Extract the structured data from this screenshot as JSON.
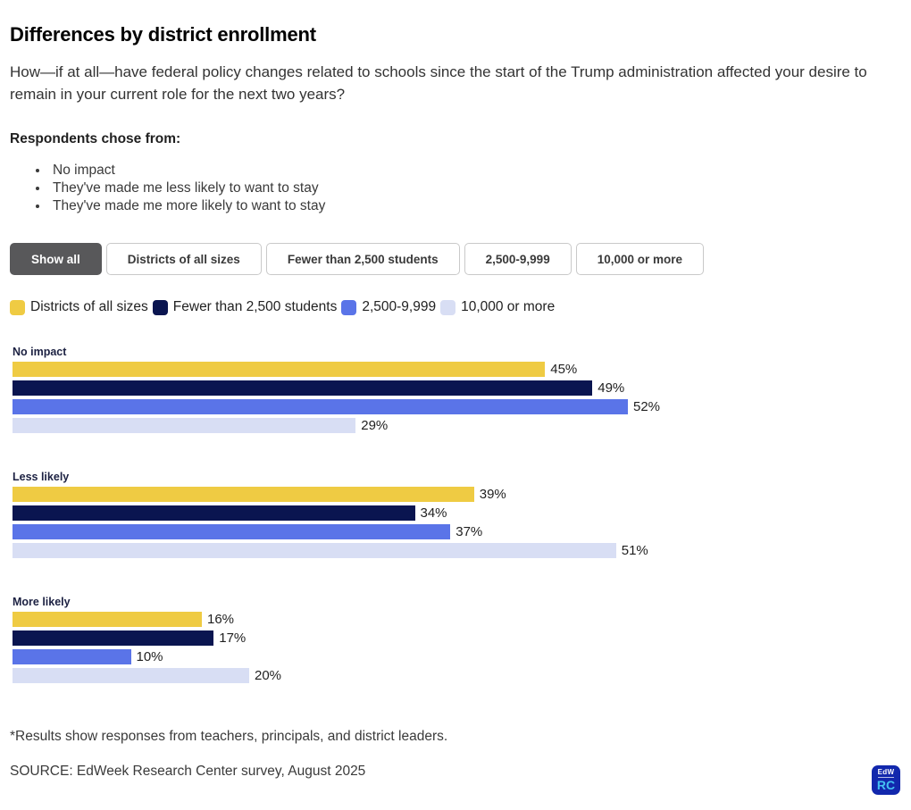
{
  "page": {
    "title": "Differences by district enrollment",
    "question": "How—if at all—have federal policy changes related to schools since the start of the Trump administration affected your desire to remain in your current role for the next two years?",
    "respondents_heading": "Respondents chose from:",
    "choices": [
      "No impact",
      "They've made me less likely to want to stay",
      "They've made me more likely to want to stay"
    ],
    "footnote": "*Results show responses from teachers, principals, and district leaders.",
    "source": "SOURCE: EdWeek Research Center survey, August 2025"
  },
  "filters": {
    "active": "Show all",
    "buttons": [
      "Show all",
      "Districts of all sizes",
      "Fewer than 2,500 students",
      "2,500-9,999",
      "10,000 or more"
    ]
  },
  "colors": {
    "gold": "#EFCB43",
    "navy": "#0A1550",
    "blue": "#5A74E8",
    "lavender": "#D8DEF4",
    "active_button_bg": "#58585A",
    "logo_bg": "#1228AD",
    "logo_rc": "#44C2F2"
  },
  "chart_data": {
    "type": "bar",
    "orientation": "horizontal",
    "unit": "%",
    "title": "Differences by district enrollment",
    "categories": [
      "No impact",
      "Less likely",
      "More likely"
    ],
    "series": [
      {
        "name": "Districts of all sizes",
        "color": "#EFCB43",
        "values": [
          45,
          39,
          16
        ]
      },
      {
        "name": "Fewer than 2,500 students",
        "color": "#0A1550",
        "values": [
          49,
          34,
          17
        ]
      },
      {
        "name": "2,500-9,999",
        "color": "#5A74E8",
        "values": [
          52,
          37,
          10
        ]
      },
      {
        "name": "10,000 or more",
        "color": "#D8DEF4",
        "values": [
          29,
          51,
          20
        ]
      }
    ],
    "xlim": [
      0,
      55
    ],
    "value_labels": true,
    "grid": false,
    "legend_position": "top"
  },
  "logo": {
    "top": "EdW",
    "bottom": "RC"
  }
}
